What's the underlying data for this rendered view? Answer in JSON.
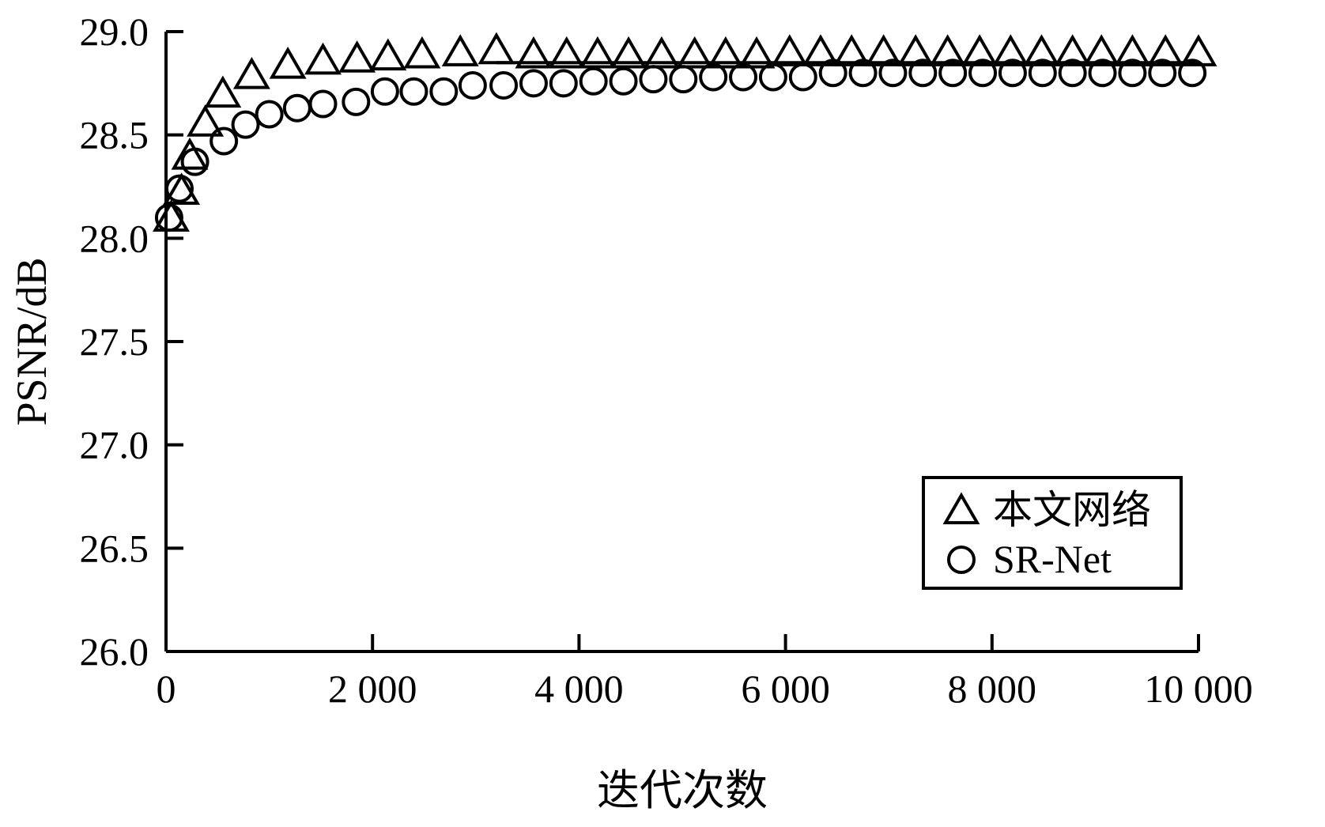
{
  "chart_data": {
    "type": "scatter",
    "title": "",
    "xlabel": "迭代次数",
    "ylabel": "PSNR/dB",
    "xlim": [
      0,
      10000
    ],
    "ylim": [
      26.0,
      29.0
    ],
    "x_ticks": [
      0,
      2000,
      4000,
      6000,
      8000,
      10000
    ],
    "x_tick_labels": [
      "0",
      "2 000",
      "4 000",
      "6 000",
      "8 000",
      "10 000"
    ],
    "y_ticks": [
      26.0,
      26.5,
      27.0,
      27.5,
      28.0,
      28.5,
      29.0
    ],
    "y_tick_labels": [
      "26.0",
      "26.5",
      "27.0",
      "27.5",
      "28.0",
      "28.5",
      "29.0"
    ],
    "grid": false,
    "legend_position": "bottom-right",
    "series": [
      {
        "name": "本文网络",
        "marker": "triangle",
        "x": [
          50,
          150,
          230,
          380,
          550,
          830,
          1180,
          1520,
          1850,
          2150,
          2480,
          2850,
          3200,
          3560,
          3880,
          4180,
          4480,
          4800,
          5120,
          5420,
          5720,
          6040,
          6340,
          6640,
          6950,
          7260,
          7570,
          7880,
          8180,
          8480,
          8780,
          9060,
          9360,
          9680,
          10000
        ],
        "y": [
          28.09,
          28.22,
          28.39,
          28.55,
          28.69,
          28.78,
          28.83,
          28.85,
          28.86,
          28.87,
          28.88,
          28.89,
          28.9,
          28.88,
          28.88,
          28.88,
          28.88,
          28.88,
          28.88,
          28.88,
          28.88,
          28.89,
          28.89,
          28.89,
          28.89,
          28.89,
          28.89,
          28.89,
          28.89,
          28.89,
          28.89,
          28.89,
          28.89,
          28.89,
          28.89
        ]
      },
      {
        "name": "SR-Net",
        "marker": "circle",
        "x": [
          30,
          130,
          280,
          560,
          770,
          1000,
          1270,
          1520,
          1840,
          2120,
          2400,
          2690,
          2970,
          3270,
          3560,
          3850,
          4140,
          4430,
          4720,
          5010,
          5300,
          5590,
          5880,
          6170,
          6460,
          6750,
          7040,
          7330,
          7620,
          7910,
          8200,
          8490,
          8780,
          9070,
          9360,
          9650,
          9940
        ],
        "y": [
          28.1,
          28.24,
          28.37,
          28.47,
          28.55,
          28.6,
          28.63,
          28.65,
          28.66,
          28.71,
          28.71,
          28.71,
          28.74,
          28.74,
          28.75,
          28.75,
          28.76,
          28.76,
          28.77,
          28.77,
          28.78,
          28.78,
          28.78,
          28.78,
          28.8,
          28.8,
          28.8,
          28.8,
          28.8,
          28.8,
          28.8,
          28.8,
          28.8,
          28.8,
          28.8,
          28.8,
          28.8
        ]
      }
    ],
    "reference_line": {
      "y": 28.85,
      "x_start": 3200,
      "x_end": 10000
    },
    "legend": [
      {
        "label": "本文网络",
        "marker": "triangle"
      },
      {
        "label": "SR-Net",
        "marker": "circle"
      }
    ]
  }
}
